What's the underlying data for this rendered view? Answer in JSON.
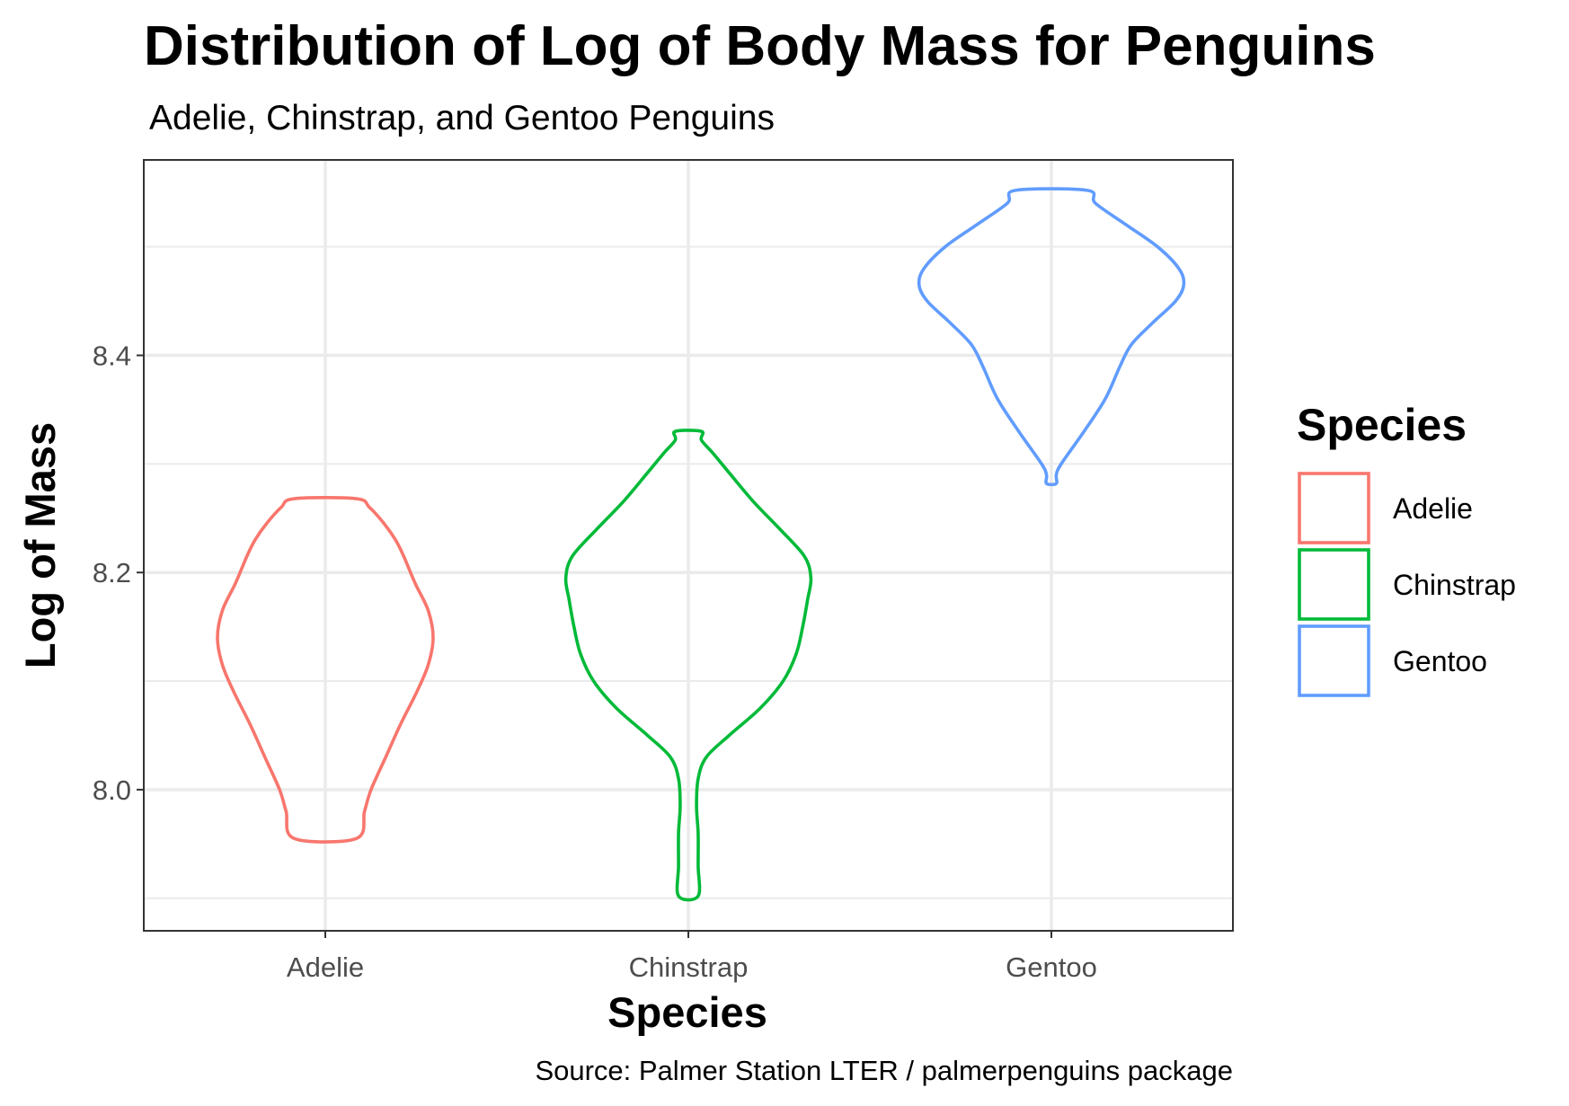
{
  "chart_data": {
    "type": "violin",
    "title": "Distribution of Log of Body Mass for Penguins",
    "subtitle": "Adelie, Chinstrap, and Gentoo Penguins",
    "xlabel": "Species",
    "ylabel": "Log of Mass",
    "caption": "Source: Palmer Station LTER / palmerpenguins package",
    "categories": [
      "Adelie",
      "Chinstrap",
      "Gentoo"
    ],
    "ylim": [
      7.87,
      8.58
    ],
    "y_ticks": [
      8.0,
      8.2,
      8.4
    ],
    "y_tick_labels": [
      "8.0",
      "8.2",
      "8.4"
    ],
    "y_minor_ticks": [
      7.9,
      8.1,
      8.3,
      8.5
    ],
    "grid": true,
    "legend": {
      "title": "Species",
      "position": "right"
    },
    "series": [
      {
        "name": "Adelie",
        "color": "#F8766D",
        "min": 7.955,
        "max": 8.268,
        "profile": [
          [
            7.955,
            0.19
          ],
          [
            7.98,
            0.24
          ],
          [
            8.0,
            0.28
          ],
          [
            8.03,
            0.37
          ],
          [
            8.06,
            0.46
          ],
          [
            8.09,
            0.56
          ],
          [
            8.115,
            0.63
          ],
          [
            8.14,
            0.66
          ],
          [
            8.165,
            0.63
          ],
          [
            8.19,
            0.55
          ],
          [
            8.215,
            0.48
          ],
          [
            8.23,
            0.43
          ],
          [
            8.245,
            0.36
          ],
          [
            8.26,
            0.27
          ],
          [
            8.268,
            0.19
          ]
        ]
      },
      {
        "name": "Chinstrap",
        "color": "#00BA38",
        "min": 7.902,
        "max": 8.33,
        "profile": [
          [
            7.902,
            0.06
          ],
          [
            7.93,
            0.06
          ],
          [
            7.96,
            0.06
          ],
          [
            7.985,
            0.05
          ],
          [
            8.01,
            0.06
          ],
          [
            8.03,
            0.11
          ],
          [
            8.05,
            0.25
          ],
          [
            8.075,
            0.44
          ],
          [
            8.1,
            0.58
          ],
          [
            8.125,
            0.66
          ],
          [
            8.15,
            0.7
          ],
          [
            8.175,
            0.73
          ],
          [
            8.195,
            0.75
          ],
          [
            8.215,
            0.71
          ],
          [
            8.24,
            0.56
          ],
          [
            8.265,
            0.4
          ],
          [
            8.29,
            0.26
          ],
          [
            8.31,
            0.15
          ],
          [
            8.322,
            0.08
          ],
          [
            8.33,
            0.08
          ]
        ]
      },
      {
        "name": "Gentoo",
        "color": "#619CFF",
        "min": 8.282,
        "max": 8.552,
        "profile": [
          [
            8.282,
            0.03
          ],
          [
            8.29,
            0.03
          ],
          [
            8.3,
            0.06
          ],
          [
            8.33,
            0.2
          ],
          [
            8.36,
            0.33
          ],
          [
            8.39,
            0.42
          ],
          [
            8.41,
            0.49
          ],
          [
            8.43,
            0.62
          ],
          [
            8.45,
            0.76
          ],
          [
            8.465,
            0.81
          ],
          [
            8.48,
            0.78
          ],
          [
            8.5,
            0.65
          ],
          [
            8.52,
            0.46
          ],
          [
            8.54,
            0.27
          ],
          [
            8.552,
            0.22
          ]
        ]
      }
    ]
  }
}
